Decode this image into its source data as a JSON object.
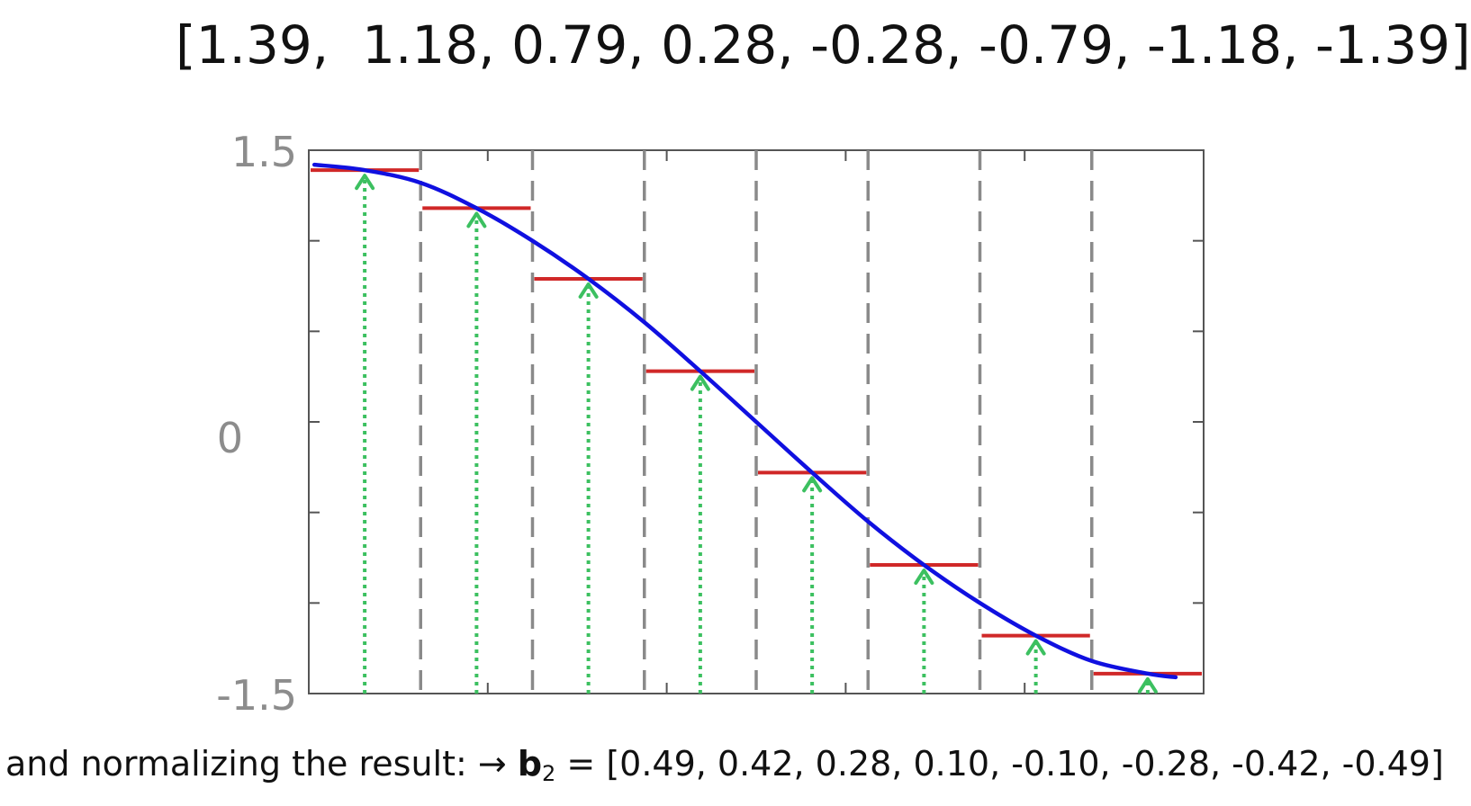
{
  "top_vector_text": "[1.39,  1.18, 0.79, 0.28, -0.28, -0.79, -1.18, -1.39]",
  "bottom_caption": {
    "prefix": "and normalizing the result: ",
    "arrow": "→",
    "symbol": "b",
    "subscript": "2",
    "suffix": " = [0.49, 0.42, 0.28, 0.10, -0.10, -0.28, -0.42, -0.49]"
  },
  "colors": {
    "curve": "#1010e0",
    "level": "#d02828",
    "arrow": "#3cc060",
    "divider": "#8a8a8a",
    "axis": "#555555",
    "tick_label": "#8c8c8c"
  },
  "chart_data": {
    "type": "line",
    "title": "",
    "xlabel": "",
    "ylabel": "",
    "xlim": [
      0,
      8
    ],
    "ylim": [
      -1.5,
      1.5
    ],
    "y_tick_labels": [
      "1.5",
      "0",
      "-1.5"
    ],
    "y_ticks": [
      1.5,
      1.0,
      0.5,
      0.0,
      -0.5,
      -1.0,
      -1.5
    ],
    "grid": false,
    "bin_boundaries": [
      1,
      2,
      3,
      4,
      5,
      6,
      7
    ],
    "bin_levels": [
      1.39,
      1.18,
      0.79,
      0.28,
      -0.28,
      -0.79,
      -1.18,
      -1.39
    ],
    "sample_points_x": [
      0.5,
      1.5,
      2.5,
      3.5,
      4.5,
      5.5,
      6.5,
      7.5
    ],
    "series": [
      {
        "values_note": "",
        "x": [
          0.05,
          0.5,
          1.0,
          1.5,
          2.0,
          2.5,
          3.0,
          3.5,
          4.0,
          4.5,
          5.0,
          5.5,
          6.0,
          6.5,
          7.0,
          7.5,
          7.75
        ],
        "y": [
          1.42,
          1.39,
          1.32,
          1.18,
          1.0,
          0.79,
          0.55,
          0.28,
          0.0,
          -0.28,
          -0.55,
          -0.79,
          -1.0,
          -1.18,
          -1.32,
          -1.39,
          -1.41
        ]
      }
    ]
  }
}
